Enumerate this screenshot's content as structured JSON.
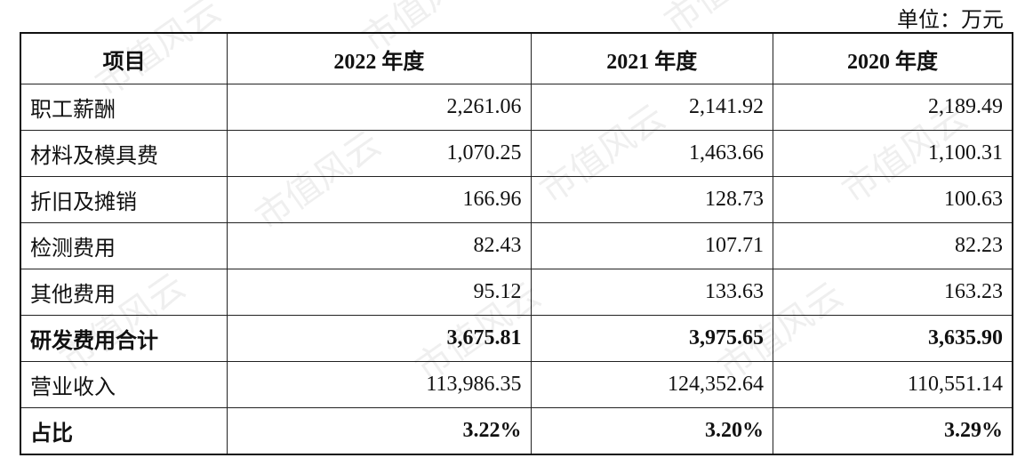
{
  "unit": "单位：万元",
  "watermark": "市值风云",
  "table": {
    "header": [
      "项目",
      "2022 年度",
      "2021 年度",
      "2020 年度"
    ],
    "rows": [
      [
        "职工薪酬",
        "2,261.06",
        "2,141.92",
        "2,189.49"
      ],
      [
        "材料及模具费",
        "1,070.25",
        "1,463.66",
        "1,100.31"
      ],
      [
        "折旧及摊销",
        "166.96",
        "128.73",
        "100.63"
      ],
      [
        "检测费用",
        "82.43",
        "107.71",
        "82.23"
      ],
      [
        "其他费用",
        "95.12",
        "133.63",
        "163.23"
      ],
      [
        "研发费用合计",
        "3,675.81",
        "3,975.65",
        "3,635.90"
      ],
      [
        "营业收入",
        "113,986.35",
        "124,352.64",
        "110,551.14"
      ],
      [
        "占比",
        "3.22%",
        "3.20%",
        "3.29%"
      ]
    ]
  }
}
